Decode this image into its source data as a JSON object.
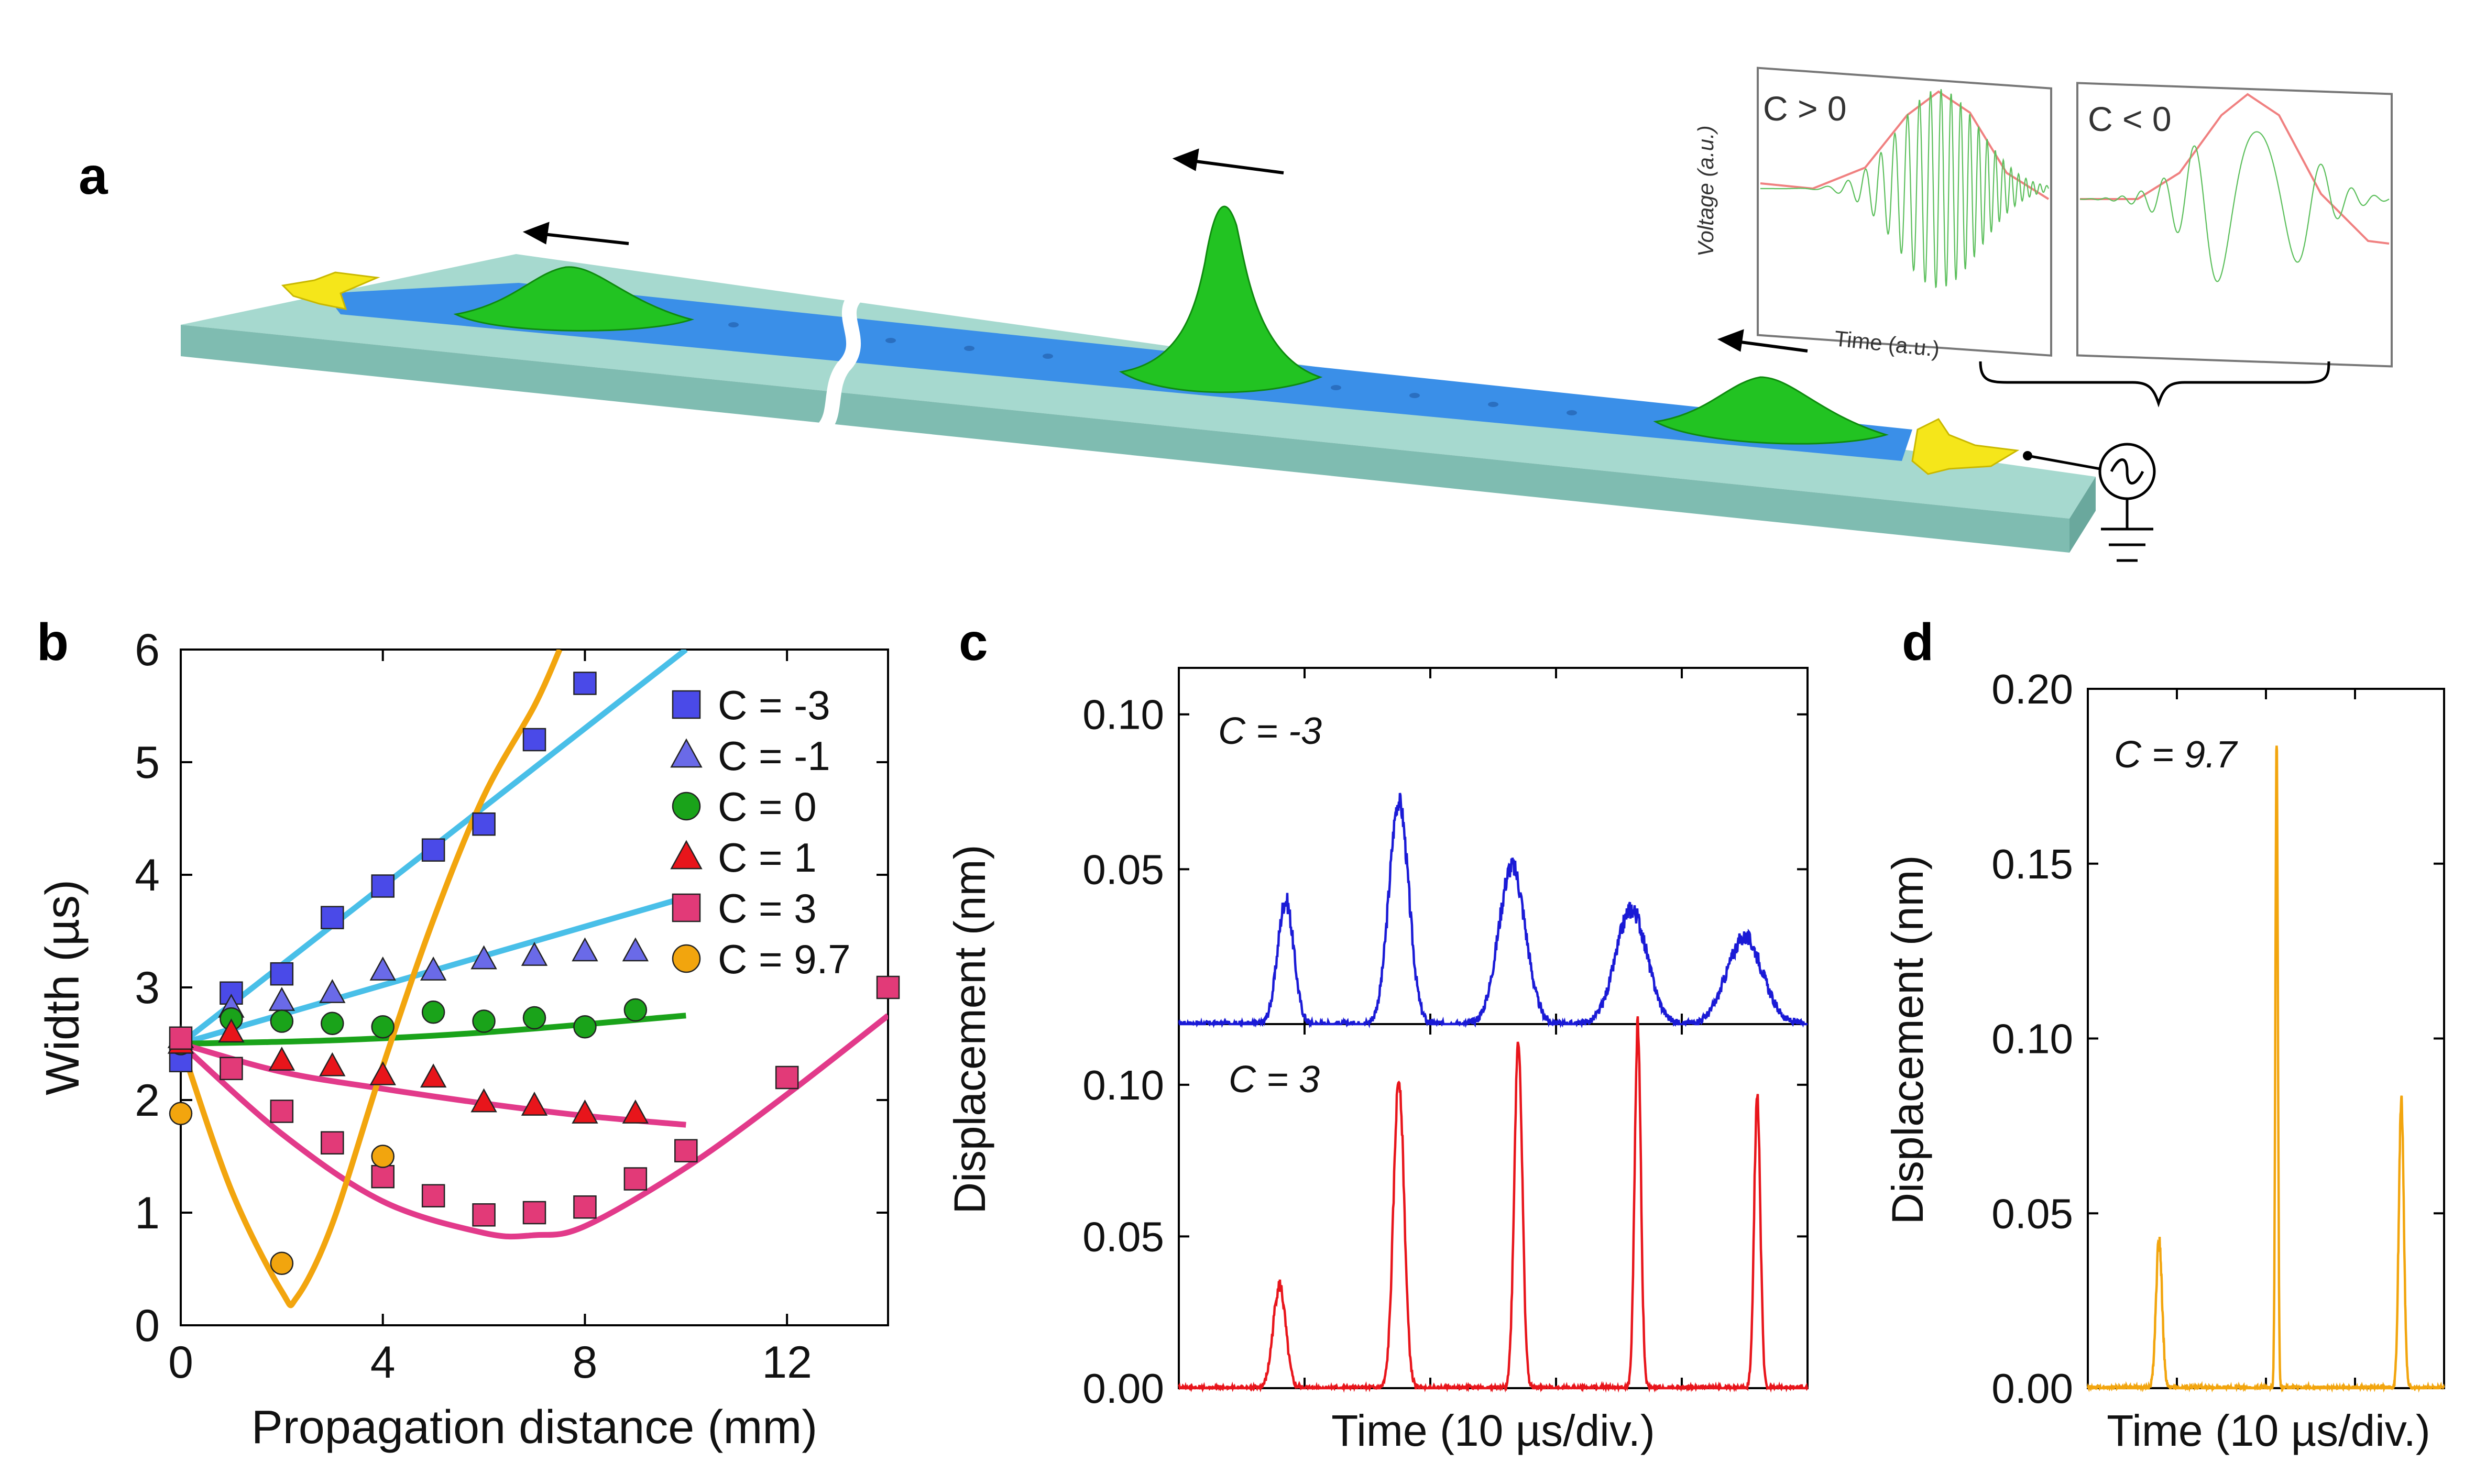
{
  "panels": {
    "a": {
      "letter": "a",
      "inset_left_label": "C > 0",
      "inset_right_label": "C < 0",
      "inset_ylabel": "Voltage (a.u.)",
      "inset_xlabel": "Time (a.u.)"
    },
    "b": {
      "letter": "b"
    },
    "c": {
      "letter": "c"
    },
    "d": {
      "letter": "d"
    }
  },
  "colors": {
    "blue": "#3b3bd6",
    "red": "#e8151b",
    "orange": "#f2a50e",
    "green": "#1aa31a",
    "pink": "#e23a8a",
    "cyan": "#49bfe8",
    "ridge_green": "#22c322",
    "waveguide_blue": "#3a8fe8",
    "slab": "#a6d9cf"
  },
  "chart_data": [
    {
      "id": "b",
      "type": "scatter",
      "title": "",
      "xlabel": "Propagation distance (mm)",
      "ylabel": "Width (µs)",
      "xlim": [
        0,
        14
      ],
      "ylim": [
        0,
        6
      ],
      "xticks": [
        0,
        4,
        8,
        12
      ],
      "yticks": [
        0,
        1,
        2,
        3,
        4,
        5,
        6
      ],
      "legend_position": "top-right",
      "series": [
        {
          "name": "C = -3",
          "marker": "square",
          "color": "#4a4ae8",
          "x": [
            0,
            1,
            2,
            3,
            4,
            5,
            6,
            7,
            8
          ],
          "y": [
            2.35,
            2.95,
            3.12,
            3.62,
            3.9,
            4.22,
            4.45,
            5.2,
            5.7
          ],
          "fit_color": "#49bfe8",
          "fit": [
            [
              0,
              2.5
            ],
            [
              10,
              6.0
            ]
          ]
        },
        {
          "name": "C = -1",
          "marker": "triangle",
          "color": "#6a6ae8",
          "x": [
            0,
            1,
            2,
            3,
            4,
            5,
            6,
            7,
            8,
            9
          ],
          "y": [
            2.55,
            2.82,
            2.88,
            2.95,
            3.15,
            3.15,
            3.25,
            3.28,
            3.32,
            3.32
          ],
          "fit_color": "#49bfe8",
          "fit": [
            [
              0,
              2.5
            ],
            [
              10,
              3.8
            ]
          ]
        },
        {
          "name": "C = 0",
          "marker": "circle",
          "color": "#1aa31a",
          "x": [
            0,
            1,
            2,
            3,
            4,
            5,
            6,
            7,
            8,
            9
          ],
          "y": [
            2.5,
            2.72,
            2.7,
            2.68,
            2.65,
            2.78,
            2.7,
            2.73,
            2.65,
            2.8
          ],
          "fit_color": "#1aa31a",
          "fit": [
            [
              0,
              2.5
            ],
            [
              3,
              2.53
            ],
            [
              6,
              2.6
            ],
            [
              10,
              2.75
            ]
          ]
        },
        {
          "name": "C = 1",
          "marker": "triangle",
          "color": "#e8151b",
          "x": [
            0,
            1,
            2,
            3,
            4,
            5,
            6,
            7,
            8,
            9
          ],
          "y": [
            2.5,
            2.6,
            2.35,
            2.3,
            2.22,
            2.2,
            1.98,
            1.95,
            1.88,
            1.88
          ],
          "fit_color": "#e23a8a",
          "fit": [
            [
              0,
              2.5
            ],
            [
              2,
              2.25
            ],
            [
              4,
              2.1
            ],
            [
              6,
              1.97
            ],
            [
              8,
              1.86
            ],
            [
              10,
              1.78
            ]
          ]
        },
        {
          "name": "C = 3",
          "marker": "square",
          "color": "#e23a78",
          "x": [
            0,
            1,
            2,
            3,
            4,
            5,
            6,
            7,
            8,
            9,
            10,
            12,
            14
          ],
          "y": [
            2.55,
            2.28,
            1.9,
            1.62,
            1.32,
            1.15,
            0.98,
            1.0,
            1.05,
            1.3,
            1.55,
            2.2,
            3.0
          ],
          "fit_color": "#e23a8a",
          "fit": [
            [
              0,
              2.5
            ],
            [
              2,
              1.7
            ],
            [
              4,
              1.1
            ],
            [
              6,
              0.82
            ],
            [
              7,
              0.8
            ],
            [
              8,
              0.88
            ],
            [
              10,
              1.4
            ],
            [
              12,
              2.05
            ],
            [
              14,
              2.75
            ]
          ]
        },
        {
          "name": "C = 9.7",
          "marker": "circle",
          "color": "#f2a50e",
          "x": [
            0,
            2,
            4
          ],
          "y": [
            1.88,
            0.55,
            1.5
          ],
          "fit_color": "#f2a50e",
          "fit": [
            [
              0,
              2.5
            ],
            [
              1,
              1.2
            ],
            [
              2,
              0.3
            ],
            [
              2.3,
              0.25
            ],
            [
              3,
              0.9
            ],
            [
              4,
              2.3
            ],
            [
              5,
              3.6
            ],
            [
              6,
              4.7
            ],
            [
              7,
              5.5
            ],
            [
              7.5,
              6.0
            ]
          ]
        }
      ]
    },
    {
      "id": "c-top",
      "type": "line",
      "annotation": "C = -3",
      "xlabel": "Time (10 µs/div.)",
      "ylabel": "Displacement (nm)",
      "ylim": [
        0.0,
        0.115
      ],
      "yticks": [
        "0.05",
        "0.10"
      ],
      "series": [
        {
          "name": "C = -3",
          "color": "#1a1ad6",
          "pulses": [
            {
              "t": 0.17,
              "amp": 0.04,
              "width": 0.018
            },
            {
              "t": 0.35,
              "amp": 0.072,
              "width": 0.022
            },
            {
              "t": 0.53,
              "amp": 0.051,
              "width": 0.03
            },
            {
              "t": 0.72,
              "amp": 0.037,
              "width": 0.035
            },
            {
              "t": 0.9,
              "amp": 0.028,
              "width": 0.04
            }
          ]
        }
      ]
    },
    {
      "id": "c-bottom",
      "type": "line",
      "annotation": "C = 3",
      "xlabel": "Time (10 µs/div.)",
      "ylabel": "Displacement (nm)",
      "ylim": [
        0.0,
        0.12
      ],
      "yticks": [
        "0.00",
        "0.05",
        "0.10"
      ],
      "series": [
        {
          "name": "C = 3",
          "color": "#e8151b",
          "pulses": [
            {
              "t": 0.16,
              "amp": 0.034,
              "width": 0.014
            },
            {
              "t": 0.35,
              "amp": 0.102,
              "width": 0.012
            },
            {
              "t": 0.54,
              "amp": 0.115,
              "width": 0.009
            },
            {
              "t": 0.73,
              "amp": 0.12,
              "width": 0.007
            },
            {
              "t": 0.92,
              "amp": 0.097,
              "width": 0.007
            }
          ]
        }
      ]
    },
    {
      "id": "d",
      "type": "line",
      "annotation": "C = 9.7",
      "xlabel": "Time (10 µs/div.)",
      "ylabel": "Displacement (nm)",
      "ylim": [
        0.0,
        0.2
      ],
      "yticks": [
        "0.00",
        "0.05",
        "0.10",
        "0.15",
        "0.20"
      ],
      "series": [
        {
          "name": "C = 9.7",
          "color": "#f2a50e",
          "pulses": [
            {
              "t": 0.2,
              "amp": 0.043,
              "width": 0.012
            },
            {
              "t": 0.53,
              "amp": 0.186,
              "width": 0.005
            },
            {
              "t": 0.88,
              "amp": 0.083,
              "width": 0.01
            }
          ]
        }
      ]
    }
  ]
}
